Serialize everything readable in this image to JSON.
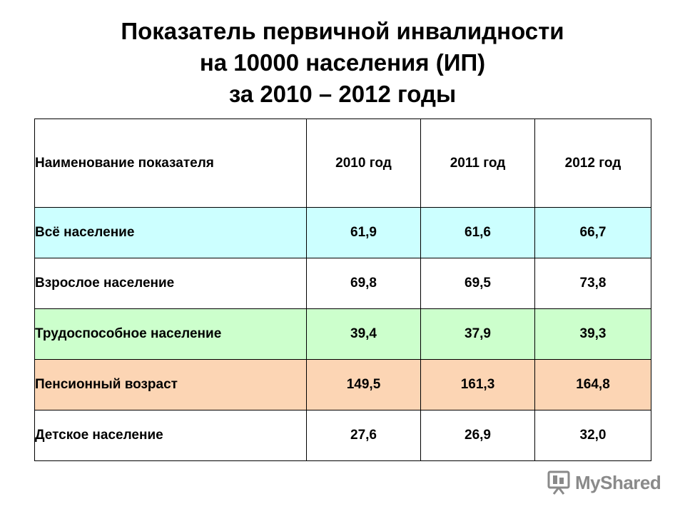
{
  "title_lines": [
    "Показатель первичной инвалидности",
    "на 10000 населения (ИП)",
    "за 2010 – 2012 годы"
  ],
  "table": {
    "header": [
      "Наименование показателя",
      "2010 год",
      "2011 год",
      "2012 год"
    ],
    "rows": [
      {
        "name": "Всё население",
        "values": [
          "61,9",
          "61,6",
          "66,7"
        ],
        "bg": "#ccffff"
      },
      {
        "name": "Взрослое население",
        "values": [
          "69,8",
          "69,5",
          "73,8"
        ],
        "bg": "#ffffff"
      },
      {
        "name": "Трудоспособное население",
        "values": [
          "39,4",
          "37,9",
          "39,3"
        ],
        "bg": "#ccffcc"
      },
      {
        "name": "Пенсионный возраст",
        "values": [
          "149,5",
          "161,3",
          "164,8"
        ],
        "bg": "#fcd5b4"
      },
      {
        "name": "Детское население",
        "values": [
          "27,6",
          "26,9",
          "32,0"
        ],
        "bg": "#ffffff"
      }
    ]
  },
  "watermark": {
    "text": "MyShared",
    "icon": "presentation-board-icon",
    "color": "#8a8a8a"
  }
}
